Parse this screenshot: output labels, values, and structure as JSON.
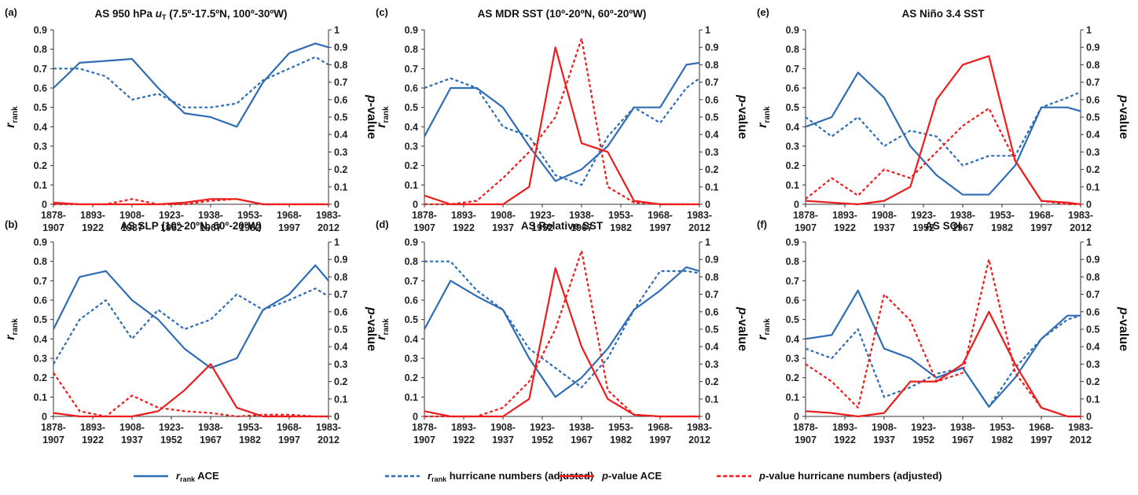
{
  "colors": {
    "rank": "#2e6db4",
    "pvalue": "#ee1c1c"
  },
  "left_axis": {
    "symbol": "r",
    "subscript": "rank",
    "ticks": [
      "0",
      "0.1",
      "0.2",
      "0.3",
      "0.4",
      "0.5",
      "0.6",
      "0.7",
      "0.8",
      "0.9"
    ],
    "range": [
      0,
      0.9
    ]
  },
  "right_axis": {
    "label": "p-value",
    "ticks": [
      "0",
      "0.1",
      "0.2",
      "0.3",
      "0.4",
      "0.5",
      "0.6",
      "0.7",
      "0.8",
      "0.9",
      "1"
    ],
    "range": [
      0,
      1
    ]
  },
  "x_ticks": [
    {
      "top": "1878-",
      "bottom": "1907"
    },
    {
      "top": "1893-",
      "bottom": "1922"
    },
    {
      "top": "1908-",
      "bottom": "1937"
    },
    {
      "top": "1923-",
      "bottom": "1952"
    },
    {
      "top": "1938-",
      "bottom": "1967"
    },
    {
      "top": "1953-",
      "bottom": "1982"
    },
    {
      "top": "1968-",
      "bottom": "1997"
    },
    {
      "top": "1983-",
      "bottom": "2012"
    }
  ],
  "legend": [
    {
      "symbol": "r",
      "subscript": "rank",
      "text": " ACE",
      "style": "solid-blue"
    },
    {
      "symbol": "r",
      "subscript": "rank",
      "text": " hurricane numbers (adjusted)",
      "style": "dashed-blue"
    },
    {
      "symbol": "p",
      "subscript": "",
      "text": "-value ACE",
      "style": "solid-red"
    },
    {
      "symbol": "p",
      "subscript": "",
      "text": "-value hurricane numbers (adjusted)",
      "style": "dashed-red"
    }
  ],
  "chart_data": [
    {
      "type": "line",
      "panel": "(a)",
      "title": "AS 950 hPa u_T (7.5º-17.5ºN, 100º-30ºW)",
      "x_start_years": [
        1878,
        1888,
        1898,
        1908,
        1918,
        1928,
        1938,
        1948,
        1958,
        1968,
        1978,
        1983
      ],
      "series": [
        {
          "name": "r_rank ACE",
          "axis": "left",
          "values": [
            0.6,
            0.73,
            0.74,
            0.75,
            0.6,
            0.47,
            0.45,
            0.4,
            0.63,
            0.78,
            0.83,
            0.81
          ]
        },
        {
          "name": "r_rank hurricane numbers (adjusted)",
          "axis": "left",
          "values": [
            0.7,
            0.7,
            0.66,
            0.54,
            0.57,
            0.5,
            0.5,
            0.52,
            0.64,
            0.7,
            0.76,
            0.72
          ]
        },
        {
          "name": "p-value ACE",
          "axis": "right",
          "values": [
            0.01,
            0,
            0,
            0,
            0,
            0.01,
            0.03,
            0.03,
            0,
            0,
            0,
            0
          ]
        },
        {
          "name": "p-value hurricane numbers (adjusted)",
          "axis": "right",
          "values": [
            0,
            0,
            0,
            0.03,
            0,
            0,
            0.02,
            0.03,
            0,
            0,
            0,
            0
          ]
        }
      ]
    },
    {
      "type": "line",
      "panel": "(b)",
      "title": "AS SLP (10º-20ºN, 60º-20ºW)",
      "x_start_years": [
        1878,
        1888,
        1898,
        1908,
        1918,
        1928,
        1938,
        1948,
        1958,
        1968,
        1978,
        1983
      ],
      "series": [
        {
          "name": "r_rank ACE",
          "axis": "left",
          "values": [
            0.45,
            0.72,
            0.75,
            0.6,
            0.5,
            0.35,
            0.25,
            0.3,
            0.55,
            0.63,
            0.78,
            0.7
          ]
        },
        {
          "name": "r_rank hurricane numbers (adjusted)",
          "axis": "left",
          "values": [
            0.27,
            0.5,
            0.6,
            0.4,
            0.55,
            0.45,
            0.5,
            0.63,
            0.55,
            0.6,
            0.66,
            0.62
          ]
        },
        {
          "name": "p-value ACE",
          "axis": "right",
          "values": [
            0.02,
            0,
            0,
            0,
            0.03,
            0.15,
            0.3,
            0.05,
            0,
            0,
            0,
            0
          ]
        },
        {
          "name": "p-value hurricane numbers (adjusted)",
          "axis": "right",
          "values": [
            0.25,
            0.03,
            0,
            0.12,
            0.05,
            0.03,
            0.02,
            0,
            0.01,
            0.01,
            0,
            0
          ]
        }
      ]
    },
    {
      "type": "line",
      "panel": "(c)",
      "title": "AS MDR SST (10º-20ºN, 60º-20ºW)",
      "x_start_years": [
        1878,
        1888,
        1898,
        1908,
        1918,
        1928,
        1938,
        1948,
        1958,
        1968,
        1978,
        1983
      ],
      "series": [
        {
          "name": "r_rank ACE",
          "axis": "left",
          "values": [
            0.35,
            0.6,
            0.6,
            0.5,
            0.3,
            0.12,
            0.18,
            0.3,
            0.5,
            0.5,
            0.72,
            0.73
          ]
        },
        {
          "name": "r_rank hurricane numbers (adjusted)",
          "axis": "left",
          "values": [
            0.6,
            0.65,
            0.6,
            0.4,
            0.35,
            0.15,
            0.1,
            0.35,
            0.5,
            0.42,
            0.6,
            0.65
          ]
        },
        {
          "name": "p-value ACE",
          "axis": "right",
          "values": [
            0.05,
            0,
            0,
            0,
            0.1,
            0.9,
            0.35,
            0.3,
            0.02,
            0,
            0,
            0
          ]
        },
        {
          "name": "p-value hurricane numbers (adjusted)",
          "axis": "right",
          "values": [
            0,
            0,
            0.02,
            0.15,
            0.3,
            0.5,
            0.95,
            0.1,
            0.01,
            0,
            0,
            0
          ]
        }
      ]
    },
    {
      "type": "line",
      "panel": "(d)",
      "title": "AS Relative SST",
      "x_start_years": [
        1878,
        1888,
        1898,
        1908,
        1918,
        1928,
        1938,
        1948,
        1958,
        1968,
        1978,
        1983
      ],
      "series": [
        {
          "name": "r_rank ACE",
          "axis": "left",
          "values": [
            0.45,
            0.7,
            0.62,
            0.55,
            0.3,
            0.1,
            0.2,
            0.35,
            0.55,
            0.65,
            0.77,
            0.75
          ]
        },
        {
          "name": "r_rank hurricane numbers (adjusted)",
          "axis": "left",
          "values": [
            0.8,
            0.8,
            0.65,
            0.55,
            0.35,
            0.25,
            0.15,
            0.3,
            0.55,
            0.75,
            0.75,
            0.74
          ]
        },
        {
          "name": "p-value ACE",
          "axis": "right",
          "values": [
            0.03,
            0,
            0,
            0,
            0.1,
            0.85,
            0.4,
            0.1,
            0.01,
            0,
            0,
            0
          ]
        },
        {
          "name": "p-value hurricane numbers (adjusted)",
          "axis": "right",
          "values": [
            0,
            0,
            0,
            0.05,
            0.2,
            0.5,
            0.95,
            0.15,
            0.01,
            0,
            0,
            0
          ]
        }
      ]
    },
    {
      "type": "line",
      "panel": "(e)",
      "title": "AS Niño 3.4 SST",
      "x_start_years": [
        1878,
        1888,
        1898,
        1908,
        1918,
        1928,
        1938,
        1948,
        1958,
        1968,
        1978,
        1983
      ],
      "series": [
        {
          "name": "r_rank ACE",
          "axis": "left",
          "values": [
            0.4,
            0.45,
            0.68,
            0.55,
            0.3,
            0.15,
            0.05,
            0.05,
            0.2,
            0.5,
            0.5,
            0.48
          ]
        },
        {
          "name": "r_rank hurricane numbers (adjusted)",
          "axis": "left",
          "values": [
            0.45,
            0.35,
            0.45,
            0.3,
            0.38,
            0.35,
            0.2,
            0.25,
            0.25,
            0.5,
            0.55,
            0.58
          ]
        },
        {
          "name": "p-value ACE",
          "axis": "right",
          "values": [
            0.02,
            0.01,
            0,
            0.02,
            0.1,
            0.6,
            0.8,
            0.85,
            0.25,
            0.02,
            0.01,
            0
          ]
        },
        {
          "name": "p-value hurricane numbers (adjusted)",
          "axis": "right",
          "values": [
            0.03,
            0.15,
            0.05,
            0.2,
            0.15,
            0.3,
            0.45,
            0.55,
            0.25,
            0.02,
            0,
            0
          ]
        }
      ]
    },
    {
      "type": "line",
      "panel": "(f)",
      "title": "AS SOI",
      "x_start_years": [
        1878,
        1888,
        1898,
        1908,
        1918,
        1928,
        1938,
        1948,
        1958,
        1968,
        1978,
        1983
      ],
      "series": [
        {
          "name": "r_rank ACE",
          "axis": "left",
          "values": [
            0.4,
            0.42,
            0.65,
            0.35,
            0.3,
            0.2,
            0.25,
            0.05,
            0.2,
            0.4,
            0.52,
            0.52
          ]
        },
        {
          "name": "r_rank hurricane numbers (adjusted)",
          "axis": "left",
          "values": [
            0.35,
            0.3,
            0.45,
            0.1,
            0.15,
            0.22,
            0.25,
            0.05,
            0.25,
            0.4,
            0.5,
            0.52
          ]
        },
        {
          "name": "p-value ACE",
          "axis": "right",
          "values": [
            0.03,
            0.02,
            0,
            0.02,
            0.2,
            0.2,
            0.3,
            0.6,
            0.3,
            0.05,
            0,
            0
          ]
        },
        {
          "name": "p-value hurricane numbers (adjusted)",
          "axis": "right",
          "values": [
            0.3,
            0.2,
            0.05,
            0.7,
            0.55,
            0.2,
            0.25,
            0.9,
            0.25,
            0.05,
            0,
            0
          ]
        }
      ]
    }
  ]
}
